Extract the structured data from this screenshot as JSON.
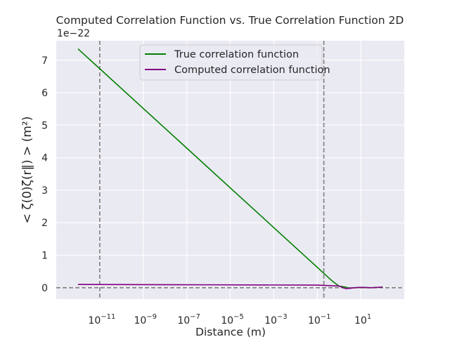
{
  "chart_data": {
    "type": "line",
    "title": "Computed Correlation Function vs. True Correlation Function 2D",
    "xlabel": "Distance (m)",
    "ylabel": "< ζ(0)ζ(r‖) > (m²)",
    "x_scale": "log",
    "xlim": [
      1e-13,
      1000
    ],
    "ylim": [
      -0.35,
      7.6
    ],
    "y_multiplier_label": "1e−22",
    "x_ticks": [
      {
        "value": 1e-11,
        "base": "10",
        "exp": "−11"
      },
      {
        "value": 1e-09,
        "base": "10",
        "exp": "−9"
      },
      {
        "value": 1e-07,
        "base": "10",
        "exp": "−7"
      },
      {
        "value": 1e-05,
        "base": "10",
        "exp": "−5"
      },
      {
        "value": 0.001,
        "base": "10",
        "exp": "−3"
      },
      {
        "value": 0.1,
        "base": "10",
        "exp": "−1"
      },
      {
        "value": 10,
        "base": "10",
        "exp": "1"
      }
    ],
    "y_ticks": [
      {
        "value": 0,
        "label": "0"
      },
      {
        "value": 1,
        "label": "1"
      },
      {
        "value": 2,
        "label": "2"
      },
      {
        "value": 3,
        "label": "3"
      },
      {
        "value": 4,
        "label": "4"
      },
      {
        "value": 5,
        "label": "5"
      },
      {
        "value": 6,
        "label": "6"
      },
      {
        "value": 7,
        "label": "7"
      }
    ],
    "grid": true,
    "legend_position": "upper-center",
    "reference_lines": {
      "vertical_x": [
        1e-11,
        0.2
      ],
      "horizontal_y": [
        0
      ],
      "color": "#808080",
      "style": "dashed"
    },
    "series": [
      {
        "name": "True correlation function",
        "color": "#008000",
        "points": [
          [
            1e-12,
            7.35
          ],
          [
            0.5,
            0.2
          ],
          [
            1,
            0.05
          ],
          [
            2,
            0.02
          ],
          [
            3,
            -0.02
          ],
          [
            5,
            0.0
          ],
          [
            10,
            0.01
          ],
          [
            30,
            0.0
          ],
          [
            100,
            0.02
          ]
        ]
      },
      {
        "name": "Computed correlation function",
        "color": "#800080",
        "points": [
          [
            1e-12,
            0.1
          ],
          [
            1e-06,
            0.09
          ],
          [
            0.1,
            0.08
          ],
          [
            1,
            0.05
          ],
          [
            2,
            -0.03
          ],
          [
            3,
            -0.02
          ],
          [
            5,
            0.0
          ],
          [
            10,
            0.01
          ],
          [
            30,
            0.0
          ],
          [
            100,
            0.02
          ]
        ]
      }
    ]
  }
}
